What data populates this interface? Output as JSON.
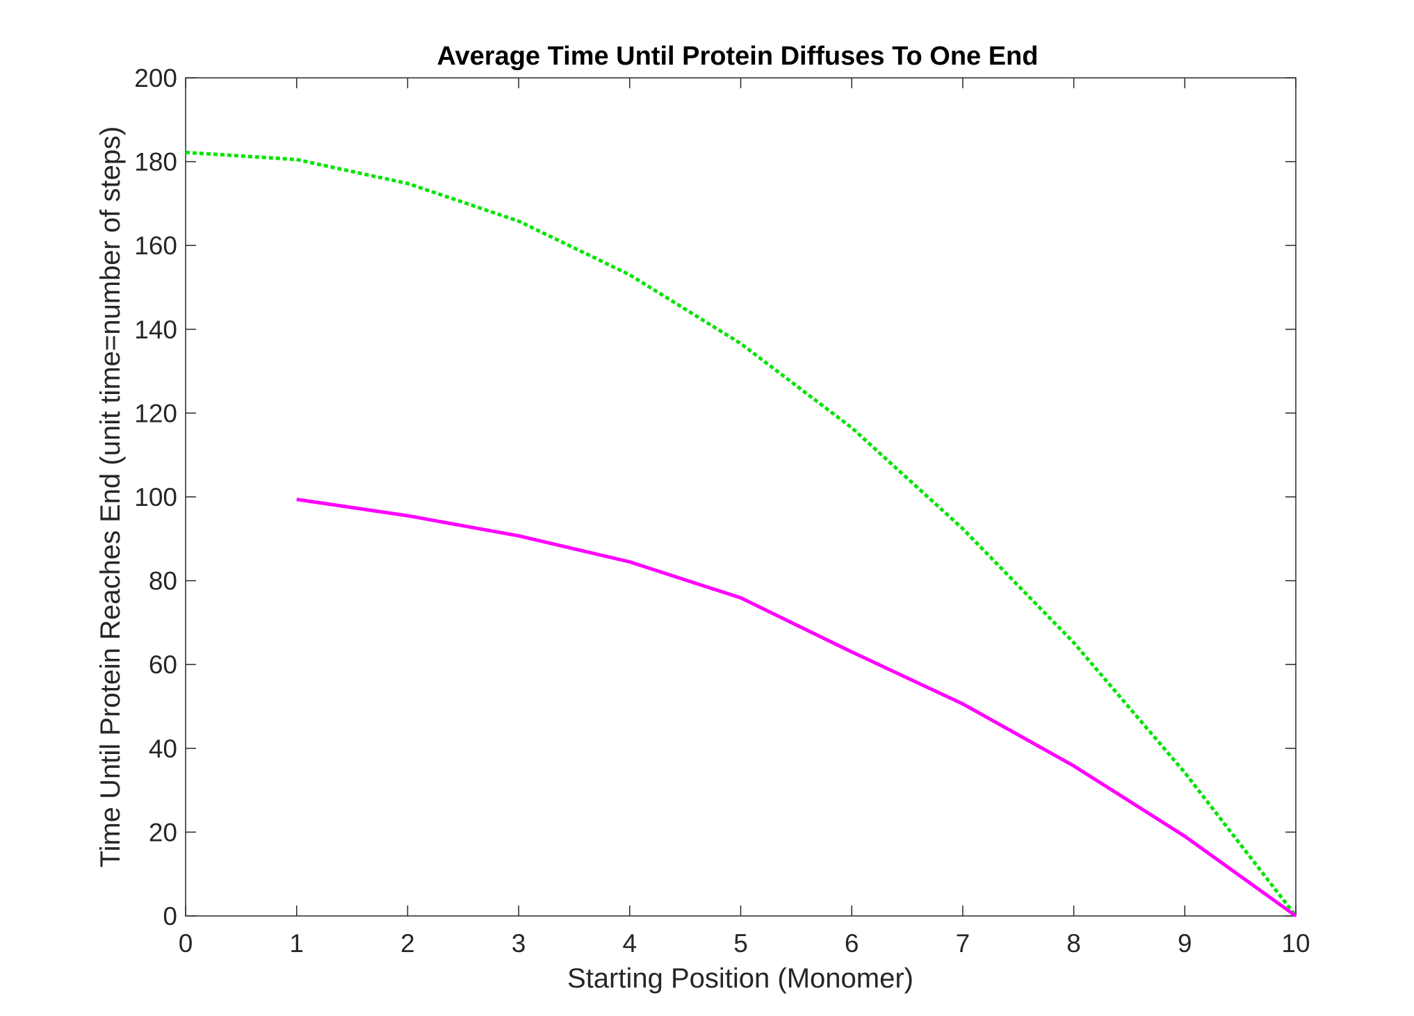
{
  "chart_data": {
    "type": "line",
    "title": "Average Time Until Protein Diffuses To One End",
    "xlabel": "Starting Position (Monomer)",
    "ylabel": "Time Until Protein Reaches End (unit time=number of steps)",
    "xlim": [
      0,
      10
    ],
    "ylim": [
      0,
      200
    ],
    "xticks": [
      0,
      1,
      2,
      3,
      4,
      5,
      6,
      7,
      8,
      9,
      10
    ],
    "yticks": [
      0,
      20,
      40,
      60,
      80,
      100,
      120,
      140,
      160,
      180,
      200
    ],
    "grid": false,
    "legend": "none",
    "series": [
      {
        "color": "#00e400",
        "style": "dotted",
        "x": [
          0,
          1,
          2,
          3,
          4,
          5,
          6,
          7,
          8,
          9,
          10
        ],
        "y": [
          182.2,
          180.5,
          174.8,
          165.8,
          153.0,
          136.6,
          116.5,
          92.4,
          65.2,
          34.2,
          0
        ]
      },
      {
        "color": "#ff00ff",
        "style": "solid",
        "x": [
          1,
          2,
          3,
          4,
          5,
          6,
          7,
          8,
          9,
          10
        ],
        "y": [
          99.4,
          95.5,
          90.7,
          84.5,
          75.9,
          63.0,
          50.6,
          35.8,
          19.0,
          0
        ]
      }
    ]
  }
}
